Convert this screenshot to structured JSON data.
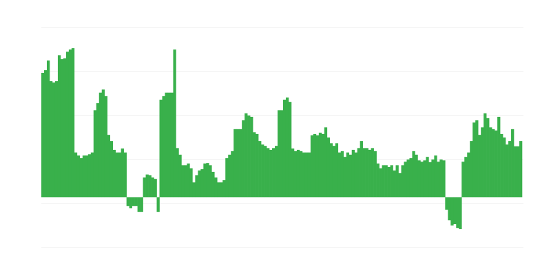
{
  "chart_data": {
    "type": "bar",
    "title": "",
    "xlabel": "",
    "ylabel": "",
    "ylim": [
      -1.14,
      3.86
    ],
    "grid": true,
    "gridlines": [
      3.86,
      2.86,
      1.86,
      0.86,
      -0.14,
      -1.14
    ],
    "legend": "none",
    "colors": {
      "bar": "#39b04b",
      "grid": "#eeeeee",
      "background": "#ffffff"
    },
    "values": [
      2.83,
      2.89,
      3.11,
      2.64,
      2.61,
      2.64,
      3.23,
      3.14,
      3.16,
      3.31,
      3.36,
      3.39,
      1.02,
      0.95,
      0.89,
      0.95,
      0.95,
      0.98,
      1.02,
      1.98,
      2.14,
      2.38,
      2.45,
      2.3,
      1.42,
      1.28,
      1.08,
      1.02,
      1.02,
      1.11,
      1.02,
      -0.2,
      -0.25,
      -0.2,
      -0.2,
      -0.33,
      -0.33,
      0.45,
      0.52,
      0.5,
      0.45,
      0.42,
      -0.33,
      2.22,
      2.3,
      2.38,
      2.38,
      2.38,
      3.36,
      1.12,
      0.97,
      0.73,
      0.73,
      0.77,
      0.66,
      0.34,
      0.5,
      0.61,
      0.64,
      0.77,
      0.78,
      0.73,
      0.58,
      0.45,
      0.34,
      0.34,
      0.39,
      0.89,
      0.97,
      1.05,
      1.55,
      1.55,
      1.55,
      1.75,
      1.91,
      1.86,
      1.83,
      1.48,
      1.44,
      1.28,
      1.2,
      1.17,
      1.12,
      1.08,
      1.12,
      1.17,
      1.98,
      1.98,
      2.22,
      2.27,
      2.17,
      1.11,
      1.05,
      1.08,
      1.05,
      1.02,
      1.02,
      1.02,
      1.41,
      1.44,
      1.41,
      1.47,
      1.44,
      1.59,
      1.36,
      1.23,
      1.17,
      1.23,
      1.02,
      1.05,
      0.92,
      1.02,
      0.97,
      1.08,
      1.02,
      1.12,
      1.28,
      1.12,
      1.12,
      1.08,
      1.12,
      1.05,
      0.77,
      0.66,
      0.73,
      0.73,
      0.69,
      0.73,
      0.61,
      0.73,
      0.55,
      0.73,
      0.81,
      0.86,
      0.89,
      1.05,
      0.97,
      0.84,
      0.81,
      0.84,
      0.92,
      0.8,
      0.86,
      0.95,
      0.81,
      0.86,
      0.84,
      -0.28,
      -0.52,
      -0.64,
      -0.61,
      -0.7,
      -0.72,
      0.81,
      0.92,
      1.02,
      1.28,
      1.7,
      1.75,
      1.42,
      1.59,
      1.91,
      1.8,
      1.59,
      1.55,
      1.52,
      1.83,
      1.44,
      1.36,
      1.2,
      1.28,
      1.55,
      1.16,
      1.16,
      1.28
    ]
  }
}
